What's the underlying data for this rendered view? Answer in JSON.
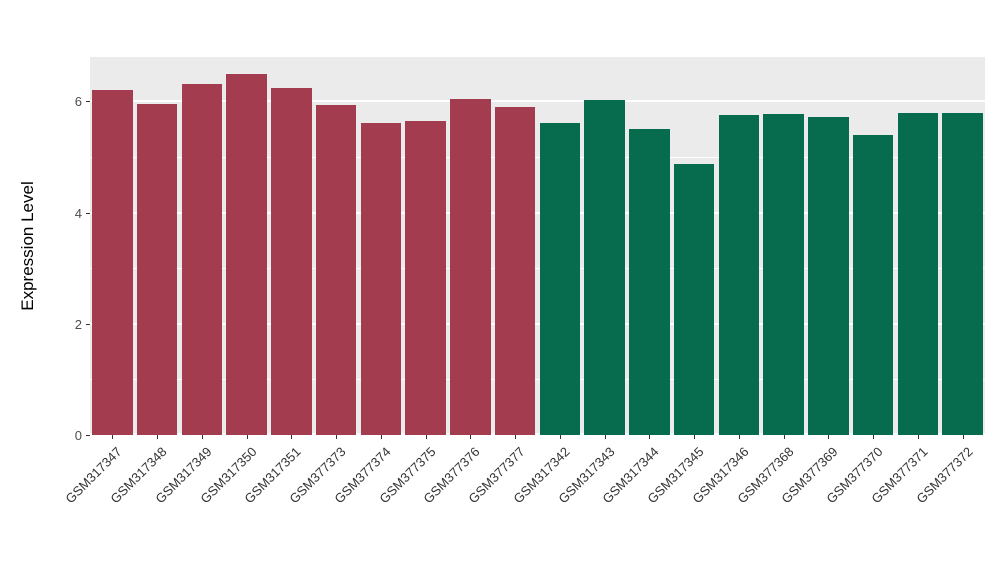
{
  "chart_data": {
    "type": "bar",
    "title": "",
    "xlabel": "",
    "ylabel": "Expression Level",
    "ylim": [
      0,
      6.8
    ],
    "yticks_major": [
      0,
      2,
      4,
      6
    ],
    "yticks_minor": [
      1,
      3,
      5
    ],
    "grid": true,
    "legend": "none",
    "panel_bg_color": "#EBEBEB",
    "grid_color": "#FFFFFF",
    "axis_text_color": "#4D4D4D",
    "group_colors": {
      "group1": "#A23C4E",
      "group2": "#076C4E"
    },
    "categories": [
      "GSM317347",
      "GSM317348",
      "GSM317349",
      "GSM317350",
      "GSM317351",
      "GSM377373",
      "GSM377374",
      "GSM377375",
      "GSM377376",
      "GSM377377",
      "GSM317342",
      "GSM317343",
      "GSM317344",
      "GSM317345",
      "GSM317346",
      "GSM377368",
      "GSM377369",
      "GSM377370",
      "GSM377371",
      "GSM377372"
    ],
    "values": [
      6.2,
      5.95,
      6.32,
      6.5,
      6.25,
      5.93,
      5.62,
      5.65,
      6.05,
      5.9,
      5.62,
      6.03,
      5.5,
      4.88,
      5.76,
      5.77,
      5.72,
      5.4,
      5.79,
      5.79
    ],
    "bar_groups": [
      "group1",
      "group1",
      "group1",
      "group1",
      "group1",
      "group1",
      "group1",
      "group1",
      "group1",
      "group1",
      "group2",
      "group2",
      "group2",
      "group2",
      "group2",
      "group2",
      "group2",
      "group2",
      "group2",
      "group2"
    ]
  }
}
